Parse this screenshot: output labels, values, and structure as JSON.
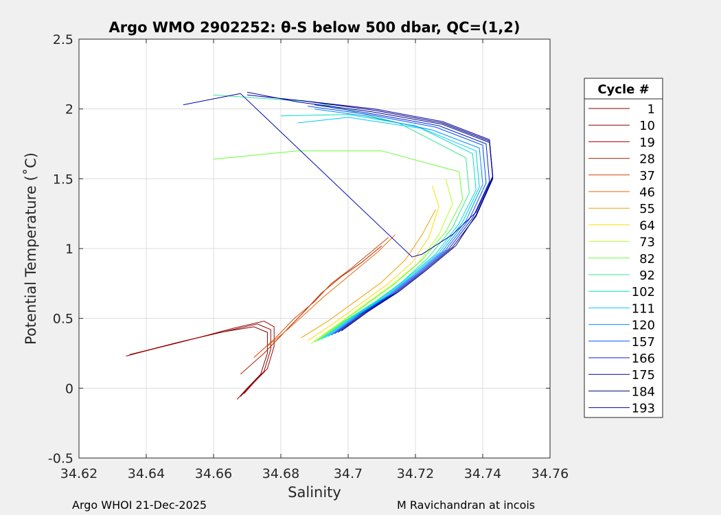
{
  "chart_data": {
    "type": "line",
    "title": "Argo WMO 2902252: θ-S below 500 dbar,  QC=(1,2)",
    "xlabel": "Salinity",
    "ylabel": "Potential Temperature (˚C)",
    "xlim": [
      34.62,
      34.76
    ],
    "ylim": [
      -0.5,
      2.5
    ],
    "xticks": [
      34.62,
      34.64,
      34.66,
      34.68,
      34.7,
      34.72,
      34.74,
      34.76
    ],
    "xtick_labels": [
      "34.62",
      "34.64",
      "34.66",
      "34.68",
      "34.7",
      "34.72",
      "34.74",
      "34.76"
    ],
    "yticks": [
      -0.5,
      0,
      0.5,
      1,
      1.5,
      2,
      2.5
    ],
    "ytick_labels": [
      "-0.5",
      "0",
      "0.5",
      "1",
      "1.5",
      "2",
      "2.5"
    ],
    "grid": true,
    "legend_title": "Cycle #",
    "legend_position": "right-outside",
    "series": [
      {
        "name": "1",
        "color": "#800000",
        "salinity": [
          34.634,
          34.648,
          34.662,
          34.672,
          34.676,
          34.676,
          34.674,
          34.67,
          34.667
        ],
        "theta": [
          0.23,
          0.32,
          0.4,
          0.44,
          0.4,
          0.25,
          0.1,
          0.0,
          -0.08
        ]
      },
      {
        "name": "10",
        "color": "#8b0000",
        "salinity": [
          34.635,
          34.65,
          34.664,
          34.673,
          34.677,
          34.677,
          34.675,
          34.671,
          34.668
        ],
        "theta": [
          0.24,
          0.33,
          0.41,
          0.46,
          0.42,
          0.28,
          0.12,
          0.02,
          -0.06
        ]
      },
      {
        "name": "19",
        "color": "#9e0000",
        "salinity": [
          34.637,
          34.652,
          34.666,
          34.675,
          34.678,
          34.678,
          34.676,
          34.672,
          34.669
        ],
        "theta": [
          0.25,
          0.34,
          0.43,
          0.48,
          0.44,
          0.3,
          0.14,
          0.04,
          -0.04
        ]
      },
      {
        "name": "28",
        "color": "#b22000",
        "salinity": [
          34.668,
          34.675,
          34.681,
          34.687,
          34.692,
          34.698,
          34.704,
          34.71
        ],
        "theta": [
          0.1,
          0.25,
          0.4,
          0.55,
          0.68,
          0.8,
          0.9,
          1.02
        ]
      },
      {
        "name": "37",
        "color": "#d44000",
        "salinity": [
          34.672,
          34.678,
          34.684,
          34.69,
          34.695,
          34.701,
          34.706,
          34.712
        ],
        "theta": [
          0.22,
          0.35,
          0.5,
          0.62,
          0.75,
          0.86,
          0.96,
          1.08
        ]
      },
      {
        "name": "46",
        "color": "#e86a00",
        "salinity": [
          34.676,
          34.682,
          34.688,
          34.693,
          34.699,
          34.704,
          34.709,
          34.714
        ],
        "theta": [
          0.3,
          0.42,
          0.55,
          0.66,
          0.78,
          0.88,
          0.98,
          1.1
        ]
      },
      {
        "name": "55",
        "color": "#f0a000",
        "salinity": [
          34.686,
          34.694,
          34.702,
          34.71,
          34.717,
          34.722,
          34.726
        ],
        "theta": [
          0.36,
          0.48,
          0.62,
          0.76,
          0.92,
          1.1,
          1.28
        ]
      },
      {
        "name": "64",
        "color": "#ffdc00",
        "salinity": [
          34.688,
          34.696,
          34.704,
          34.712,
          34.719,
          34.724,
          34.727,
          34.725
        ],
        "theta": [
          0.34,
          0.47,
          0.61,
          0.75,
          0.9,
          1.08,
          1.3,
          1.45
        ]
      },
      {
        "name": "73",
        "color": "#b4ff20",
        "salinity": [
          34.689,
          34.697,
          34.705,
          34.713,
          34.721,
          34.727,
          34.731,
          34.729
        ],
        "theta": [
          0.32,
          0.46,
          0.6,
          0.74,
          0.9,
          1.1,
          1.32,
          1.5
        ]
      },
      {
        "name": "82",
        "color": "#66ff33",
        "salinity": [
          34.69,
          34.698,
          34.706,
          34.714,
          34.722,
          34.729,
          34.734,
          34.733,
          34.71,
          34.685,
          34.66
        ],
        "theta": [
          0.33,
          0.47,
          0.61,
          0.75,
          0.92,
          1.12,
          1.35,
          1.55,
          1.7,
          1.7,
          1.64
        ]
      },
      {
        "name": "92",
        "color": "#30e890",
        "salinity": [
          34.691,
          34.699,
          34.708,
          34.716,
          34.724,
          34.731,
          34.736,
          34.735,
          34.715,
          34.69,
          34.66
        ],
        "theta": [
          0.34,
          0.48,
          0.62,
          0.76,
          0.94,
          1.15,
          1.4,
          1.65,
          1.9,
          2.05,
          2.1
        ]
      },
      {
        "name": "102",
        "color": "#00e0c0",
        "salinity": [
          34.692,
          34.7,
          34.709,
          34.717,
          34.726,
          34.733,
          34.738,
          34.737,
          34.72,
          34.7,
          34.68
        ],
        "theta": [
          0.35,
          0.49,
          0.63,
          0.78,
          0.96,
          1.18,
          1.42,
          1.68,
          1.88,
          1.96,
          1.95
        ]
      },
      {
        "name": "111",
        "color": "#00c8ff",
        "salinity": [
          34.693,
          34.701,
          34.71,
          34.718,
          34.727,
          34.734,
          34.739,
          34.738,
          34.722,
          34.7,
          34.685
        ],
        "theta": [
          0.36,
          0.5,
          0.64,
          0.79,
          0.97,
          1.19,
          1.44,
          1.7,
          1.86,
          1.94,
          1.9
        ]
      },
      {
        "name": "120",
        "color": "#0090ff",
        "salinity": [
          34.694,
          34.702,
          34.711,
          34.719,
          34.728,
          34.735,
          34.74,
          34.739,
          34.725,
          34.705,
          34.69
        ],
        "theta": [
          0.37,
          0.51,
          0.65,
          0.8,
          0.98,
          1.2,
          1.46,
          1.72,
          1.85,
          1.95,
          2.0
        ]
      },
      {
        "name": "157",
        "color": "#0050ff",
        "salinity": [
          34.695,
          34.703,
          34.712,
          34.72,
          34.729,
          34.736,
          34.741,
          34.74,
          34.726,
          34.706,
          34.688
        ],
        "theta": [
          0.38,
          0.52,
          0.66,
          0.81,
          0.99,
          1.21,
          1.47,
          1.74,
          1.87,
          1.96,
          2.02
        ]
      },
      {
        "name": "166",
        "color": "#0020d0",
        "salinity": [
          34.696,
          34.704,
          34.713,
          34.721,
          34.73,
          34.737,
          34.742,
          34.741,
          34.727,
          34.706,
          34.69
        ],
        "theta": [
          0.39,
          0.53,
          0.67,
          0.82,
          1.0,
          1.22,
          1.48,
          1.75,
          1.88,
          1.97,
          2.03
        ]
      },
      {
        "name": "175",
        "color": "#000090",
        "salinity": [
          34.697,
          34.705,
          34.714,
          34.722,
          34.731,
          34.738,
          34.743,
          34.742,
          34.728,
          34.707,
          34.685,
          34.67
        ],
        "theta": [
          0.4,
          0.54,
          0.68,
          0.83,
          1.01,
          1.23,
          1.5,
          1.76,
          1.89,
          1.98,
          2.05,
          2.12
        ]
      },
      {
        "name": "184",
        "color": "#00006e",
        "salinity": [
          34.698,
          34.706,
          34.715,
          34.723,
          34.732,
          34.738,
          34.743,
          34.742,
          34.728,
          34.708,
          34.686
        ],
        "theta": [
          0.41,
          0.55,
          0.69,
          0.84,
          1.02,
          1.24,
          1.51,
          1.77,
          1.9,
          1.99,
          2.06
        ]
      },
      {
        "name": "193",
        "color": "#0000b4",
        "salinity": [
          34.651,
          34.668,
          34.719,
          34.722,
          34.731,
          34.738,
          34.743,
          34.742,
          34.728,
          34.708,
          34.686,
          34.67
        ],
        "theta": [
          2.03,
          2.11,
          0.94,
          0.96,
          1.1,
          1.26,
          1.52,
          1.78,
          1.91,
          2.0,
          2.06,
          2.1
        ]
      }
    ]
  },
  "footer": {
    "left": "Argo WHOI 21-Dec-2025",
    "right": "M Ravichandran at incois"
  }
}
